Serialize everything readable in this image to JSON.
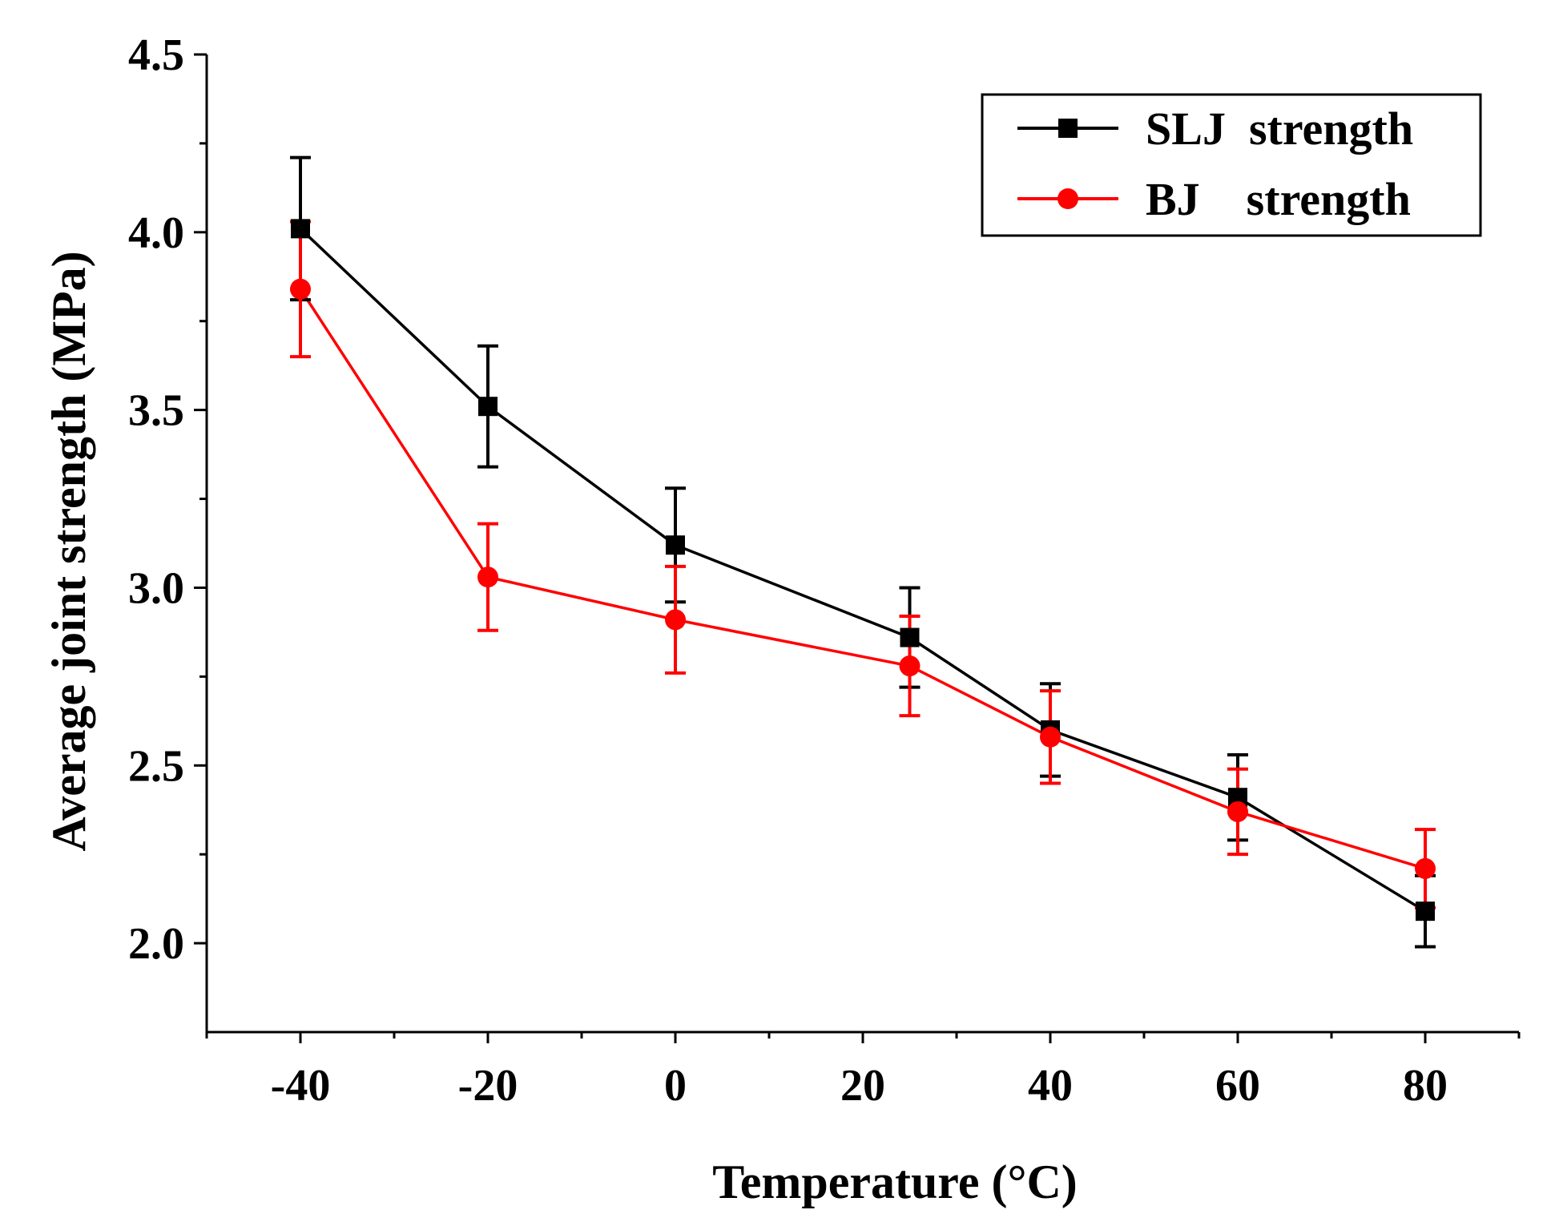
{
  "chart_data": {
    "type": "line",
    "title": "",
    "xlabel": "Temperature (°C)",
    "ylabel": "Average joint strength (MPa)",
    "xlim": [
      -50,
      90
    ],
    "ylim": [
      1.75,
      4.5
    ],
    "x_ticks": [
      -40,
      -20,
      0,
      20,
      40,
      60,
      80
    ],
    "x_tick_labels": [
      "-40",
      "-20",
      "0",
      "20",
      "40",
      "60",
      "80"
    ],
    "y_ticks": [
      2.0,
      2.5,
      3.0,
      3.5,
      4.0,
      4.5
    ],
    "y_tick_labels": [
      "2.0",
      "2.5",
      "3.0",
      "3.5",
      "4.0",
      "4.5"
    ],
    "grid": false,
    "legend_position": "top-right",
    "series": [
      {
        "name": "SLJ  strength",
        "color": "#000000",
        "marker": "square",
        "x": [
          -40,
          -20,
          0,
          25,
          40,
          60,
          80
        ],
        "y": [
          4.01,
          3.51,
          3.12,
          2.86,
          2.6,
          2.41,
          2.09
        ],
        "error": [
          0.2,
          0.17,
          0.16,
          0.14,
          0.13,
          0.12,
          0.1
        ]
      },
      {
        "name": "BJ    strength",
        "color": "#ff0000",
        "marker": "circle",
        "x": [
          -40,
          -20,
          0,
          25,
          40,
          60,
          80
        ],
        "y": [
          3.84,
          3.03,
          2.91,
          2.78,
          2.58,
          2.37,
          2.21
        ],
        "error": [
          0.19,
          0.15,
          0.15,
          0.14,
          0.13,
          0.12,
          0.11
        ]
      }
    ]
  }
}
